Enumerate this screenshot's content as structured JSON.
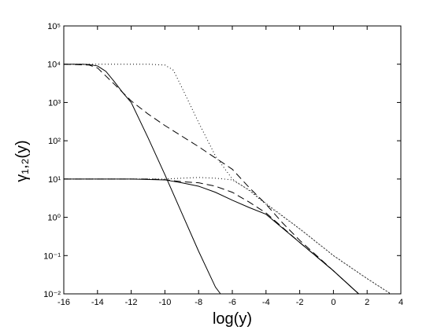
{
  "chart_data": {
    "type": "line",
    "xlabel": "log(y)",
    "ylabel": "γ₁,₂(y)",
    "xlim": [
      -16,
      4
    ],
    "xticks": [
      -16,
      -14,
      -12,
      -10,
      -8,
      -6,
      -4,
      -2,
      0,
      2,
      4
    ],
    "ylim": [
      0.01,
      100000
    ],
    "yscale": "log",
    "yticks": [
      {
        "value": 0.01,
        "label": "10⁻²"
      },
      {
        "value": 0.1,
        "label": "10⁻¹"
      },
      {
        "value": 1,
        "label": "10⁰"
      },
      {
        "value": 10,
        "label": "10¹"
      },
      {
        "value": 100,
        "label": "10²"
      },
      {
        "value": 1000,
        "label": "10³"
      },
      {
        "value": 10000,
        "label": "10⁴"
      },
      {
        "value": 100000,
        "label": "10⁵"
      }
    ],
    "grid": false,
    "series": [
      {
        "color": "#000000",
        "dash": "solid",
        "x": [
          -16,
          -15,
          -14.5,
          -14,
          -13.5,
          -13,
          -12.5,
          -12,
          -11,
          -10,
          -9,
          -8,
          -7,
          -6.7
        ],
        "values": [
          10000,
          10000,
          9800,
          9000,
          6500,
          3500,
          1800,
          1000,
          120,
          13,
          1.3,
          0.13,
          0.015,
          0.01
        ]
      },
      {
        "color": "#000000",
        "dash": "dashed",
        "x": [
          -16,
          -14.5,
          -14,
          -13,
          -12,
          -11,
          -10,
          -8,
          -6,
          -5,
          -4,
          -3,
          -2,
          0,
          1.5
        ],
        "values": [
          10000,
          9500,
          8000,
          3000,
          1100,
          500,
          250,
          70,
          18,
          6,
          2.2,
          0.7,
          0.25,
          0.04,
          0.01
        ]
      },
      {
        "color": "#000000",
        "dash": "dotted",
        "x": [
          -16,
          -11,
          -10,
          -9.5,
          -9,
          -8,
          -7,
          -6,
          -5,
          -4,
          -2,
          0,
          2,
          3.4
        ],
        "values": [
          10000,
          10000,
          9500,
          7000,
          2500,
          300,
          40,
          10,
          5,
          2.2,
          0.5,
          0.1,
          0.025,
          0.01
        ]
      },
      {
        "color": "#000000",
        "dash": "solid",
        "x": [
          -16,
          -12,
          -10,
          -9,
          -8,
          -7,
          -6,
          -5,
          -4,
          -2,
          0,
          1.5
        ],
        "values": [
          10,
          10,
          9.5,
          8,
          6.5,
          4.5,
          2.8,
          1.8,
          1.2,
          0.22,
          0.04,
          0.01
        ]
      },
      {
        "color": "#000000",
        "dash": "dashed",
        "x": [
          -16,
          -11,
          -10,
          -9,
          -8,
          -7,
          -6,
          -5,
          -4,
          -2,
          0,
          1.5
        ],
        "values": [
          10,
          10,
          9.6,
          8.5,
          8,
          6.5,
          4.5,
          2.5,
          1.3,
          0.22,
          0.04,
          0.01
        ]
      },
      {
        "color": "#000000",
        "dash": "dotted",
        "x": [
          -16,
          -10,
          -9,
          -8,
          -7,
          -6,
          -5,
          -4,
          -2,
          0,
          2,
          3.4
        ],
        "values": [
          10,
          10,
          10.5,
          11,
          10.5,
          9.5,
          5.2,
          2.3,
          0.5,
          0.1,
          0.025,
          0.01
        ]
      }
    ]
  }
}
